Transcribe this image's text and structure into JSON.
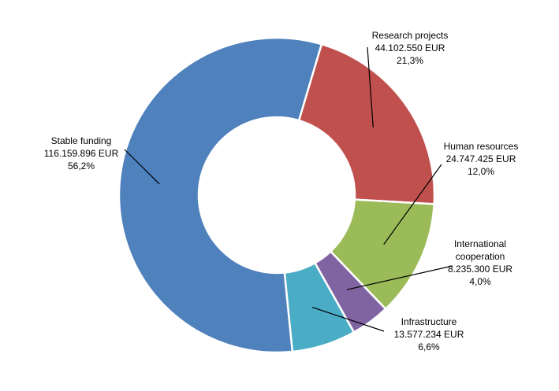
{
  "chart_data": {
    "type": "pie",
    "variant": "donut",
    "title": "",
    "legend": "none",
    "slices": [
      {
        "name": "Research projects",
        "value_text": "44.102.550 EUR",
        "value": 44102550,
        "percent_text": "21,3%",
        "percent": 21.3,
        "color": "#C0504D"
      },
      {
        "name": "Human resources",
        "value_text": "24.747.425 EUR",
        "value": 24747425,
        "percent_text": "12,0%",
        "percent": 12.0,
        "color": "#9BBB59"
      },
      {
        "name_lines": [
          "International",
          "cooperation"
        ],
        "name": "International cooperation",
        "value_text": "8.235.300 EUR",
        "value": 8235300,
        "percent_text": "4,0%",
        "percent": 4.0,
        "color": "#8064A2"
      },
      {
        "name": "Infrastructure",
        "value_text": "13.577.234 EUR",
        "value": 13577234,
        "percent_text": "6,6%",
        "percent": 6.6,
        "color": "#4BACC6"
      },
      {
        "name": "Stable funding",
        "value_text": "116.159.896 EUR",
        "value": 116159896,
        "percent_text": "56,2%",
        "percent": 56.2,
        "color": "#4F81BD"
      }
    ]
  }
}
